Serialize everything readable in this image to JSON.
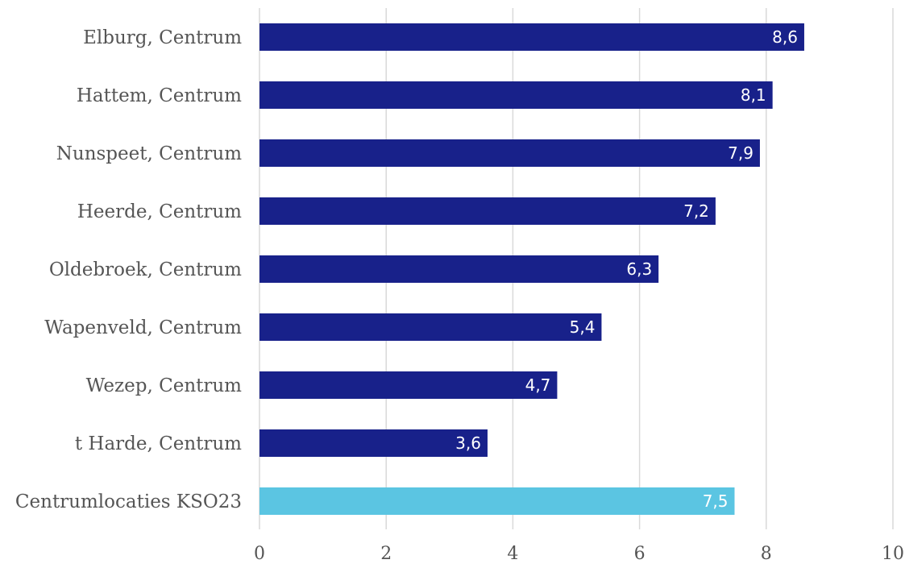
{
  "chart_data": {
    "type": "bar",
    "orientation": "horizontal",
    "categories": [
      "Elburg, Centrum",
      "Hattem, Centrum",
      "Nunspeet, Centrum",
      "Heerde, Centrum",
      "Oldebroek, Centrum",
      "Wapenveld, Centrum",
      "Wezep, Centrum",
      "t Harde, Centrum",
      "Centrumlocaties KSO23"
    ],
    "values": [
      8.6,
      8.1,
      7.9,
      7.2,
      6.3,
      5.4,
      4.7,
      3.6,
      7.5
    ],
    "value_labels": [
      "8,6",
      "8,1",
      "7,9",
      "7,2",
      "6,3",
      "5,4",
      "4,7",
      "3,6",
      "7,5"
    ],
    "bar_colors": [
      "#18218a",
      "#18218a",
      "#18218a",
      "#18218a",
      "#18218a",
      "#18218a",
      "#18218a",
      "#18218a",
      "#5bc5e2"
    ],
    "x_ticks": [
      0,
      2,
      4,
      6,
      8,
      10
    ],
    "x_tick_labels": [
      "0",
      "2",
      "4",
      "6",
      "8",
      "10"
    ],
    "xlim": [
      0,
      10
    ],
    "title": "",
    "xlabel": "",
    "ylabel": "",
    "grid": "vertical",
    "legend": "none"
  }
}
